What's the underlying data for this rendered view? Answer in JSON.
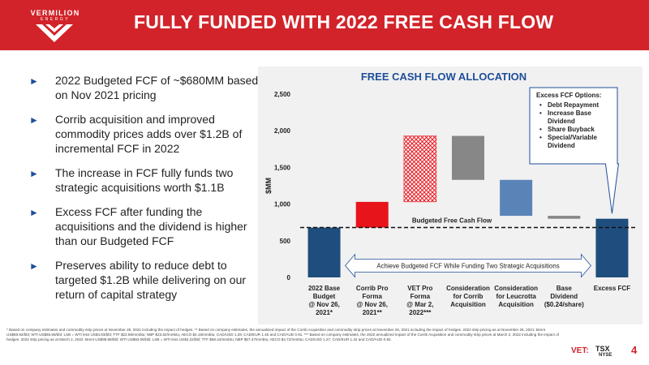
{
  "header": {
    "title": "FULLY FUNDED WITH 2022 FREE CASH FLOW",
    "logo_text": "VERMILION",
    "logo_sub": "ENERGY",
    "bg_color": "#d2232a"
  },
  "bullets": [
    "2022 Budgeted FCF of ~$680MM based on Nov 2021 pricing",
    "Corrib acquisition and improved commodity prices adds over $1.2B of incremental FCF in 2022",
    "The increase in FCF fully funds two strategic acquisitions worth $1.1B",
    "Excess FCF after funding the acquisitions and the dividend is higher than our Budgeted FCF",
    "Preserves ability to reduce debt to targeted $1.2B while delivering on our return of capital strategy"
  ],
  "chart_data": {
    "type": "bar",
    "subtype": "waterfall",
    "title": "FREE CASH FLOW ALLOCATION",
    "ylabel": "$MM",
    "ylim": [
      0,
      2500
    ],
    "yticks": [
      0,
      500,
      1000,
      1500,
      2000,
      2500
    ],
    "ytick_labels": [
      "0",
      "500",
      "1,000",
      "1,500",
      "2,000",
      "2,500"
    ],
    "categories": [
      [
        "2022 Base",
        "Budget",
        "@ Nov 26,",
        "2021*"
      ],
      [
        "Corrib Pro",
        "Forma",
        "@ Nov 26,",
        "2021**"
      ],
      [
        "VET Pro",
        "Forma",
        "@ Mar 2,",
        "2022***"
      ],
      [
        "Consideration",
        "for Corrib",
        "Acquisition"
      ],
      [
        "Consideration",
        "for Leucrotta",
        "Acquisition"
      ],
      [
        "Base",
        "Dividend",
        "($0.24/share)"
      ],
      [
        "Excess FCF"
      ]
    ],
    "bars": [
      {
        "low": 0,
        "high": 680,
        "color": "#1f4e7e",
        "style": "solid"
      },
      {
        "low": 680,
        "high": 1030,
        "color": "#e8141c",
        "style": "solid"
      },
      {
        "low": 1030,
        "high": 1930,
        "color": "#e8141c",
        "style": "hatched"
      },
      {
        "low": 1330,
        "high": 1930,
        "color": "#878787",
        "style": "solid"
      },
      {
        "low": 840,
        "high": 1330,
        "color": "#5a84b8",
        "style": "solid"
      },
      {
        "low": 800,
        "high": 840,
        "color": "#878787",
        "style": "solid"
      },
      {
        "low": 0,
        "high": 800,
        "color": "#1f4e7e",
        "style": "solid"
      }
    ],
    "reference_line": {
      "value": 680,
      "label": "Budgeted Free Cash Flow"
    },
    "annotation": "Achieve Budgeted FCF While Funding Two Strategic Acquisitions",
    "callout": {
      "title": "Excess FCF Options:",
      "items": [
        "Debt Repayment",
        "Increase Base Dividend",
        "Share Buyback",
        "Special/Variable Dividend"
      ]
    },
    "grid": false,
    "legend": "none"
  },
  "footnote": "* Based on company estimates and commodity strip prices at November 26, 2021 including the impact of hedges. ** Based on company estimates, the annualized impact of the Corrib Acquisition and commodity strip prices at November 26, 2021 including the impact of hedges. 2022 strip pricing as at November 26, 2021: Brent US$68.92/bbl; WTI US$65.58/bbl; LSB = WTI less US$4.93/bbl; TTF $22.86/mmbtu; NBP $23.62/mmbtu; AECO $4.16/mmbtu; CAD/USD 1.28; CAD/EUR 1.45 and CAD/AUD 0.91. *** Based on company estimates, the 2022 annualized impact of the Corrib Acquisition and commodity strip prices at March 2, 2022 including the impact of hedges. 2022 strip pricing as at March 2, 2022: Brent US$99.68/bbl; WTI US$93.06/bbl; LSB = WTI less US$4.22/bbl; TTF $58.44/mmbtu; NBP $57.47/mmbtu; AECO $4.72/mmbtu; CAD/USD 1.27; CAD/EUR 1.42 and CAD/AUD 0.92.",
  "footer": {
    "vet": "VET:",
    "tsx": "TSX",
    "nyse": "NYSE",
    "page": "4"
  }
}
